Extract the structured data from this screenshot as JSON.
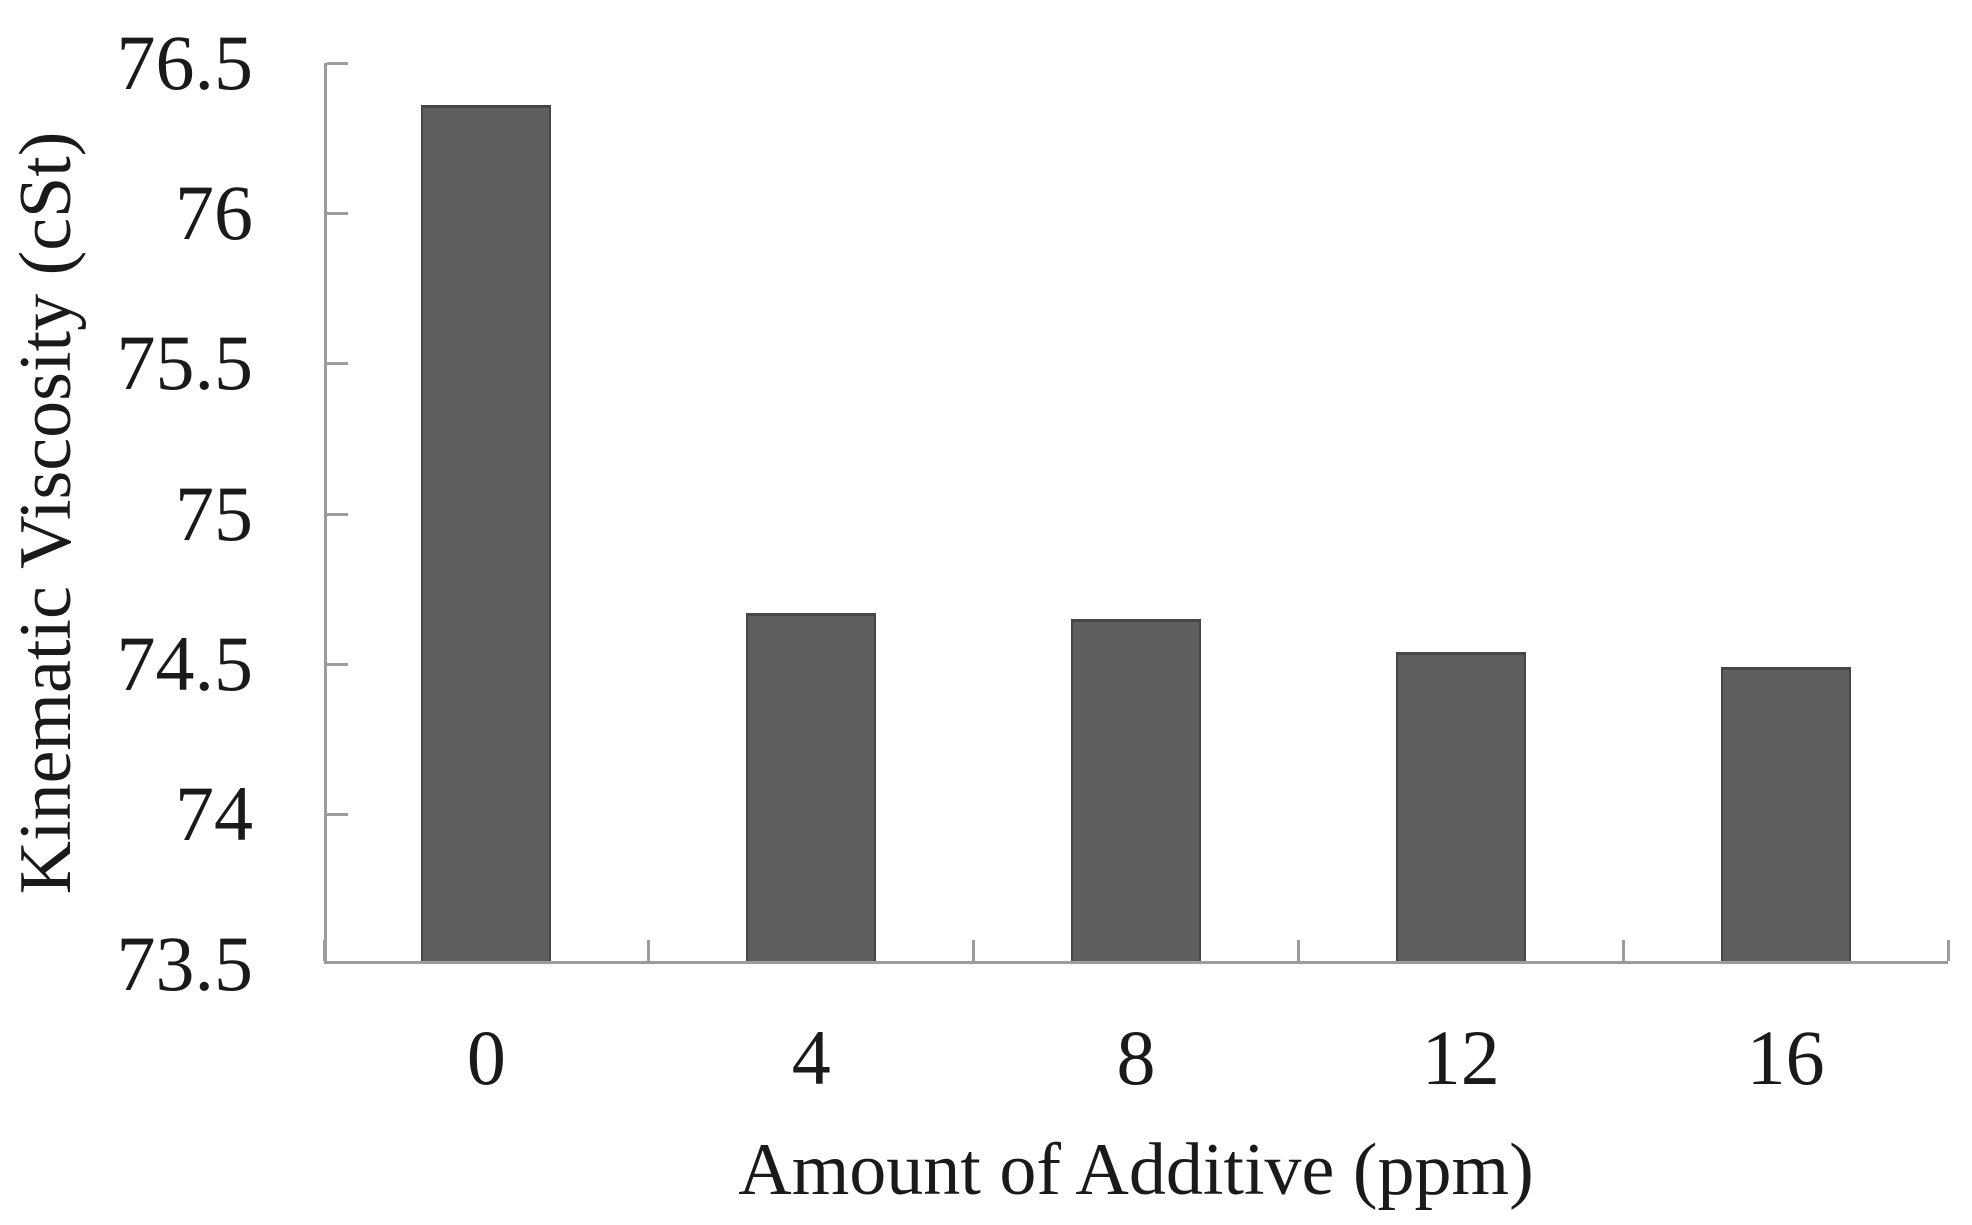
{
  "figure": {
    "background": "#ffffff",
    "text_color": "#1a1a1a"
  },
  "chart_data": {
    "type": "bar",
    "title": "",
    "xlabel": "Amount of Additive (ppm)",
    "ylabel": "Kinematic Viscosity (cSt)",
    "categories": [
      "0",
      "4",
      "8",
      "12",
      "16"
    ],
    "values": [
      76.35,
      74.66,
      74.64,
      74.53,
      74.48
    ],
    "ylim": [
      73.5,
      76.5
    ],
    "ytick_step": 0.5,
    "ytick_values": [
      73.5,
      74,
      74.5,
      75,
      75.5,
      76,
      76.5
    ],
    "ytick_labels": [
      "73.5",
      "74",
      "74.5",
      "75",
      "75.5",
      "76",
      "76.5"
    ],
    "grid": false,
    "legend": "none",
    "bar_color": "#5f5f5f",
    "bar_edge_color": "#474747",
    "axis_color": "#9c9c9c",
    "bar_width_fraction_of_slot": 0.4
  }
}
